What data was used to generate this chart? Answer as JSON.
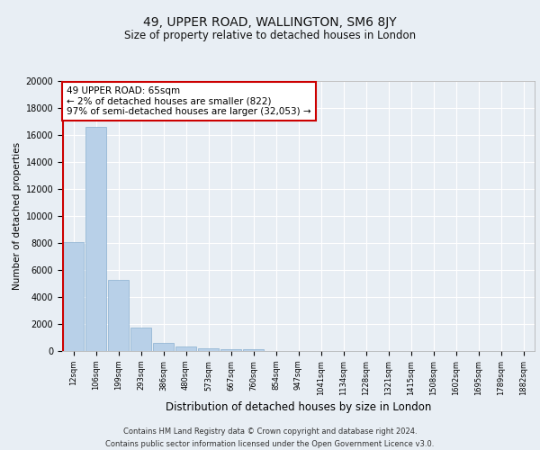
{
  "title_line1": "49, UPPER ROAD, WALLINGTON, SM6 8JY",
  "title_line2": "Size of property relative to detached houses in London",
  "xlabel": "Distribution of detached houses by size in London",
  "ylabel": "Number of detached properties",
  "categories": [
    "12sqm",
    "106sqm",
    "199sqm",
    "293sqm",
    "386sqm",
    "480sqm",
    "573sqm",
    "667sqm",
    "760sqm",
    "854sqm",
    "947sqm",
    "1041sqm",
    "1134sqm",
    "1228sqm",
    "1321sqm",
    "1415sqm",
    "1508sqm",
    "1602sqm",
    "1695sqm",
    "1789sqm",
    "1882sqm"
  ],
  "values": [
    8100,
    16600,
    5300,
    1750,
    620,
    330,
    200,
    160,
    130,
    0,
    0,
    0,
    0,
    0,
    0,
    0,
    0,
    0,
    0,
    0,
    0
  ],
  "bar_color": "#b8d0e8",
  "bar_edge_color": "#8ab0d0",
  "marker_color": "#cc0000",
  "ylim": [
    0,
    20000
  ],
  "yticks": [
    0,
    2000,
    4000,
    6000,
    8000,
    10000,
    12000,
    14000,
    16000,
    18000,
    20000
  ],
  "annotation_text": "49 UPPER ROAD: 65sqm\n← 2% of detached houses are smaller (822)\n97% of semi-detached houses are larger (32,053) →",
  "annotation_box_facecolor": "#ffffff",
  "annotation_box_edgecolor": "#cc0000",
  "footer_line1": "Contains HM Land Registry data © Crown copyright and database right 2024.",
  "footer_line2": "Contains public sector information licensed under the Open Government Licence v3.0.",
  "bg_color": "#e8eef4",
  "grid_color": "#ffffff",
  "axes_bg_color": "#e8eef4",
  "title1_fontsize": 10,
  "title2_fontsize": 8.5,
  "ylabel_fontsize": 7.5,
  "xlabel_fontsize": 8.5,
  "tick_fontsize": 7,
  "xtick_fontsize": 6.0,
  "annotation_fontsize": 7.5,
  "footer_fontsize": 6.0
}
